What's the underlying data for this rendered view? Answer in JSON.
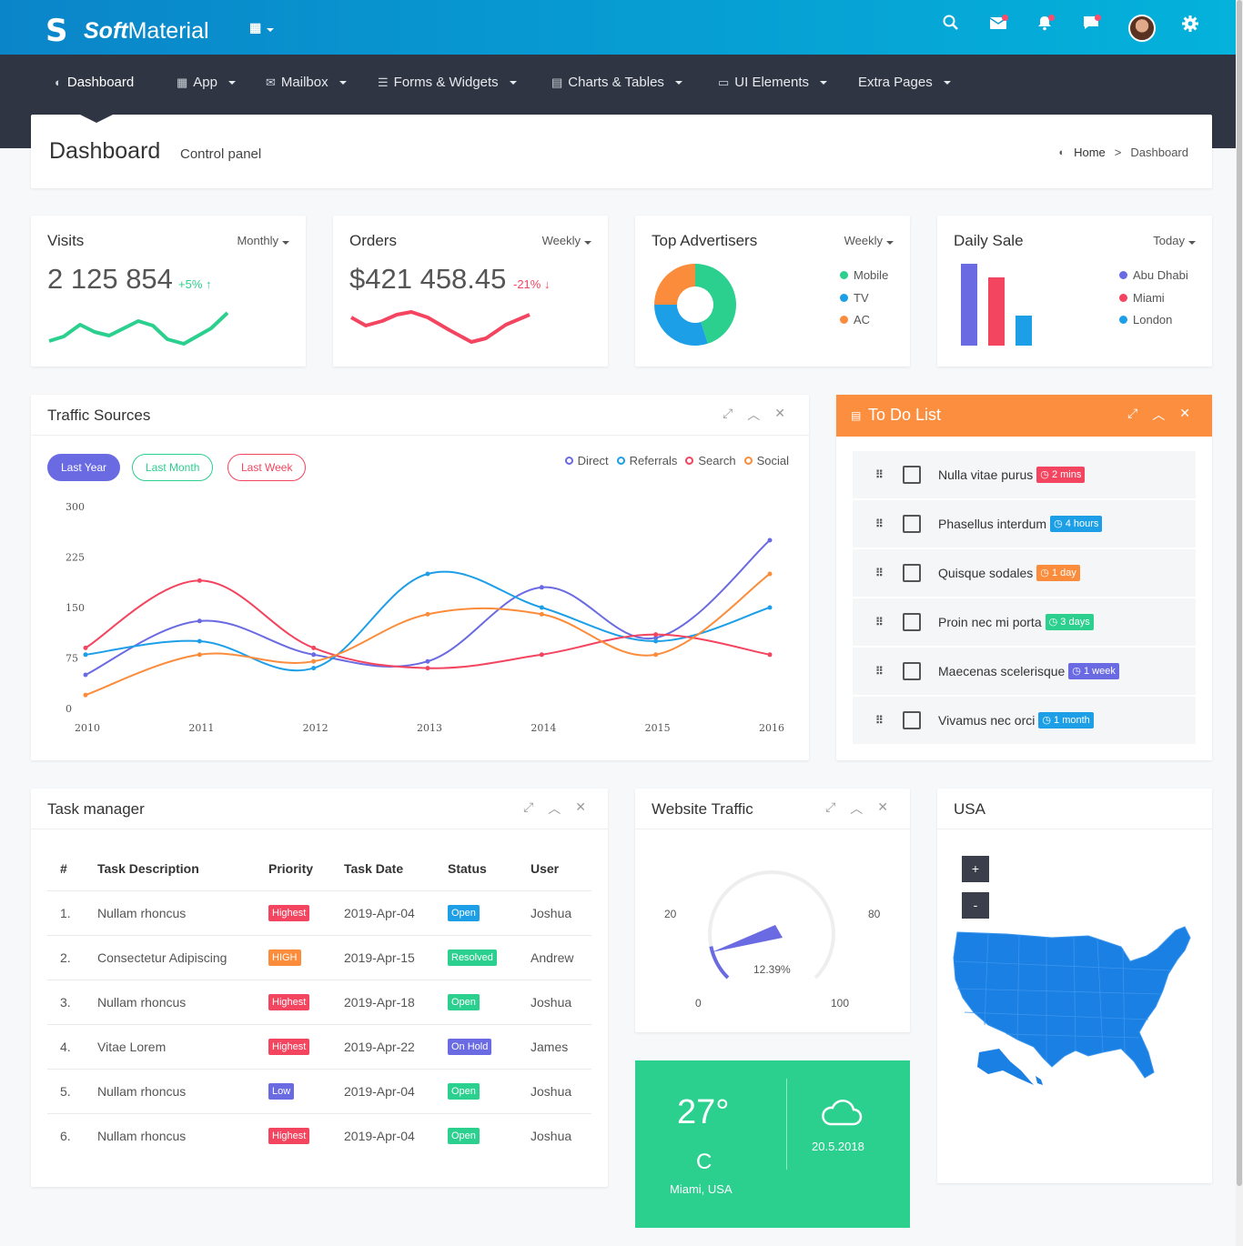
{
  "brand": {
    "bold": "Soft",
    "rest": "Material"
  },
  "topbar_icons": [
    "apps-grid-icon",
    "search-icon",
    "mail-icon",
    "bell-icon",
    "chat-icon",
    "avatar",
    "gear-icon"
  ],
  "nav": [
    {
      "label": "Dashboard",
      "icon": "dashboard-icon"
    },
    {
      "label": "App",
      "icon": "grid-icon"
    },
    {
      "label": "Mailbox",
      "icon": "envelope-icon"
    },
    {
      "label": "Forms & Widgets",
      "icon": "list-icon"
    },
    {
      "label": "Charts & Tables",
      "icon": "table-icon"
    },
    {
      "label": "UI Elements",
      "icon": "laptop-icon"
    },
    {
      "label": "Extra Pages",
      "icon": ""
    }
  ],
  "page": {
    "title": "Dashboard",
    "subtitle": "Control panel",
    "breadcrumb": {
      "home": "Home",
      "current": "Dashboard"
    }
  },
  "visits": {
    "title": "Visits",
    "period": "Monthly",
    "value": "2 125 854",
    "change": "+5%"
  },
  "orders": {
    "title": "Orders",
    "period": "Weekly",
    "value": "$421 458.45",
    "change": "-21%"
  },
  "advertisers": {
    "title": "Top Advertisers",
    "period": "Weekly",
    "legend": [
      "Mobile",
      "TV",
      "AC"
    ]
  },
  "daily_sale": {
    "title": "Daily Sale",
    "period": "Today",
    "legend": [
      "Abu Dhabi",
      "Miami",
      "London"
    ]
  },
  "traffic": {
    "title": "Traffic Sources",
    "buttons": [
      "Last Year",
      "Last Month",
      "Last Week"
    ],
    "legend": [
      "Direct",
      "Referrals",
      "Search",
      "Social"
    ]
  },
  "colors": {
    "direct": "#6a6ae2",
    "referrals": "#1d9fe8",
    "search": "#f3455f",
    "social": "#fb8c3b",
    "green": "#2bcf8e",
    "orange": "#fc8e3f"
  },
  "chart_data": [
    {
      "type": "line",
      "title": "",
      "x": [
        "2010",
        "2011",
        "2012",
        "2013",
        "2014",
        "2015",
        "2016"
      ],
      "ylim": [
        0,
        300
      ],
      "yticks": [
        "0",
        "75",
        "150",
        "225",
        "300"
      ],
      "series": [
        {
          "name": "Direct",
          "values": [
            50,
            130,
            80,
            70,
            180,
            105,
            250
          ]
        },
        {
          "name": "Referrals",
          "values": [
            80,
            100,
            60,
            200,
            150,
            100,
            150
          ]
        },
        {
          "name": "Search",
          "values": [
            90,
            190,
            90,
            60,
            80,
            110,
            80
          ]
        },
        {
          "name": "Social",
          "values": [
            20,
            80,
            70,
            140,
            140,
            80,
            200
          ]
        }
      ]
    },
    {
      "type": "pie",
      "title": "",
      "categories": [
        "Mobile",
        "TV",
        "AC"
      ],
      "values": [
        45,
        30,
        25
      ]
    },
    {
      "type": "bar",
      "title": "",
      "categories": [
        "Abu Dhabi",
        "Miami",
        "London"
      ],
      "values": [
        90,
        75,
        33
      ]
    }
  ],
  "todo": {
    "title": "To Do List",
    "items": [
      {
        "text": "Nulla vitae purus",
        "badge": "2 mins",
        "color": "#f3455f"
      },
      {
        "text": "Phasellus interdum",
        "badge": "4 hours",
        "color": "#1d9fe8"
      },
      {
        "text": "Quisque sodales",
        "badge": "1 day",
        "color": "#fb8c3b"
      },
      {
        "text": "Proin nec mi porta",
        "badge": "3 days",
        "color": "#2bcf8e"
      },
      {
        "text": "Maecenas scelerisque",
        "badge": "1 week",
        "color": "#6a6ae2"
      },
      {
        "text": "Vivamus nec orci",
        "badge": "1 month",
        "color": "#1d9fe8"
      }
    ]
  },
  "tasks": {
    "title": "Task manager",
    "headers": [
      "#",
      "Task Description",
      "Priority",
      "Task Date",
      "Status",
      "User"
    ],
    "rows": [
      {
        "n": "1.",
        "desc": "Nullam rhoncus",
        "priority": "Highest",
        "pcolor": "#f3455f",
        "date": "2019-Apr-04",
        "status": "Open",
        "scolor": "#1d9fe8",
        "user": "Joshua"
      },
      {
        "n": "2.",
        "desc": "Consectetur Adipiscing",
        "priority": "HIGH",
        "pcolor": "#fb8c3b",
        "date": "2019-Apr-15",
        "status": "Resolved",
        "scolor": "#2bcf8e",
        "user": "Andrew"
      },
      {
        "n": "3.",
        "desc": "Nullam rhoncus",
        "priority": "Highest",
        "pcolor": "#f3455f",
        "date": "2019-Apr-18",
        "status": "Open",
        "scolor": "#2bcf8e",
        "user": "Joshua"
      },
      {
        "n": "4.",
        "desc": "Vitae Lorem",
        "priority": "Highest",
        "pcolor": "#f3455f",
        "date": "2019-Apr-22",
        "status": "On Hold",
        "scolor": "#6a6ae2",
        "user": "James"
      },
      {
        "n": "5.",
        "desc": "Nullam rhoncus",
        "priority": "Low",
        "pcolor": "#6a6ae2",
        "date": "2019-Apr-04",
        "status": "Open",
        "scolor": "#2bcf8e",
        "user": "Joshua"
      },
      {
        "n": "6.",
        "desc": "Nullam rhoncus",
        "priority": "Highest",
        "pcolor": "#f3455f",
        "date": "2019-Apr-04",
        "status": "Open",
        "scolor": "#2bcf8e",
        "user": "Joshua"
      }
    ]
  },
  "website_traffic": {
    "title": "Website Traffic",
    "value": "12.39%",
    "gauge_fraction": 0.1239,
    "scale": [
      "0",
      "20",
      "80",
      "100"
    ]
  },
  "weather": {
    "temp": "27°",
    "unit": "C",
    "location": "Miami, USA",
    "date": "20.5.2018"
  },
  "map": {
    "title": "USA",
    "zoom_in": "+",
    "zoom_out": "-"
  }
}
